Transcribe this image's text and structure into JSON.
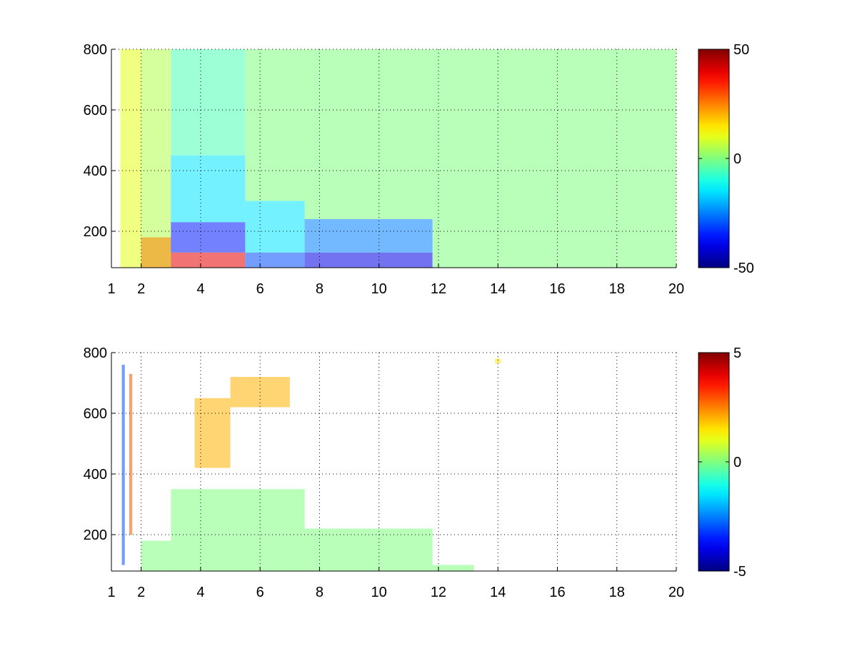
{
  "chart_data": [
    {
      "type": "heatmap",
      "title": "",
      "xlabel": "",
      "ylabel": "",
      "xlim": [
        1,
        20
      ],
      "ylim": [
        80,
        800
      ],
      "x_ticks": [
        1,
        2,
        4,
        6,
        8,
        10,
        12,
        14,
        16,
        18,
        20
      ],
      "x_tick_labels": [
        "1",
        "2",
        "4",
        "6",
        "8",
        "10",
        "12",
        "14",
        "16",
        "18",
        "20"
      ],
      "y_ticks": [
        200,
        400,
        600,
        800
      ],
      "y_tick_labels": [
        "200",
        "400",
        "600",
        "800"
      ],
      "grid": true,
      "colormap": "jet",
      "clim": [
        -50,
        50
      ],
      "colorbar_ticks": [
        -50,
        0,
        50
      ],
      "colorbar_tick_labels": [
        "-50",
        "0",
        "50"
      ],
      "colorbar_position": "right",
      "regions": [
        {
          "x": [
            1.3,
            2.0
          ],
          "y": [
            80,
            800
          ],
          "value": 10
        },
        {
          "x": [
            2.0,
            3.0
          ],
          "y": [
            80,
            800
          ],
          "value": 5
        },
        {
          "x": [
            2.0,
            3.0
          ],
          "y": [
            80,
            180
          ],
          "value": 25
        },
        {
          "x": [
            3.0,
            5.5
          ],
          "y": [
            80,
            130
          ],
          "value": 40
        },
        {
          "x": [
            3.0,
            5.5
          ],
          "y": [
            130,
            230
          ],
          "value": -35
        },
        {
          "x": [
            3.0,
            5.5
          ],
          "y": [
            230,
            450
          ],
          "value": -15
        },
        {
          "x": [
            3.0,
            5.5
          ],
          "y": [
            450,
            800
          ],
          "value": -5
        },
        {
          "x": [
            5.5,
            7.5
          ],
          "y": [
            80,
            130
          ],
          "value": -30
        },
        {
          "x": [
            5.5,
            7.5
          ],
          "y": [
            130,
            300
          ],
          "value": -15
        },
        {
          "x": [
            5.5,
            7.5
          ],
          "y": [
            300,
            800
          ],
          "value": 0
        },
        {
          "x": [
            7.5,
            11.8
          ],
          "y": [
            80,
            130
          ],
          "value": -40
        },
        {
          "x": [
            7.5,
            11.8
          ],
          "y": [
            130,
            240
          ],
          "value": -25
        },
        {
          "x": [
            7.5,
            11.8
          ],
          "y": [
            240,
            800
          ],
          "value": 0
        },
        {
          "x": [
            11.8,
            20
          ],
          "y": [
            80,
            800
          ],
          "value": 0
        }
      ]
    },
    {
      "type": "heatmap",
      "title": "",
      "xlabel": "",
      "ylabel": "",
      "xlim": [
        1,
        20
      ],
      "ylim": [
        80,
        800
      ],
      "x_ticks": [
        1,
        2,
        4,
        6,
        8,
        10,
        12,
        14,
        16,
        18,
        20
      ],
      "x_tick_labels": [
        "1",
        "2",
        "4",
        "6",
        "8",
        "10",
        "12",
        "14",
        "16",
        "18",
        "20"
      ],
      "y_ticks": [
        200,
        400,
        600,
        800
      ],
      "y_tick_labels": [
        "200",
        "400",
        "600",
        "800"
      ],
      "grid": true,
      "colormap": "jet",
      "clim": [
        -5,
        5
      ],
      "colorbar_ticks": [
        -5,
        0,
        5
      ],
      "colorbar_tick_labels": [
        "-5",
        "0",
        "5"
      ],
      "colorbar_position": "right",
      "regions": [
        {
          "x": [
            1.35,
            1.45
          ],
          "y": [
            100,
            760
          ],
          "value": -3
        },
        {
          "x": [
            1.6,
            1.7
          ],
          "y": [
            200,
            730
          ],
          "value": 3
        },
        {
          "x": [
            2.0,
            3.0
          ],
          "y": [
            80,
            180
          ],
          "value": 0
        },
        {
          "x": [
            3.0,
            7.5
          ],
          "y": [
            80,
            220
          ],
          "value": 0
        },
        {
          "x": [
            3.0,
            7.5
          ],
          "y": [
            220,
            350
          ],
          "value": 0
        },
        {
          "x": [
            3.8,
            5.0
          ],
          "y": [
            420,
            650
          ],
          "value": 2
        },
        {
          "x": [
            5.0,
            7.0
          ],
          "y": [
            620,
            720
          ],
          "value": 2
        },
        {
          "x": [
            7.5,
            11.8
          ],
          "y": [
            80,
            220
          ],
          "value": 0
        },
        {
          "x": [
            11.8,
            13.2
          ],
          "y": [
            80,
            100
          ],
          "value": 0
        },
        {
          "x": [
            13.9,
            14.1
          ],
          "y": [
            765,
            780
          ],
          "value": 1.5
        }
      ]
    }
  ]
}
